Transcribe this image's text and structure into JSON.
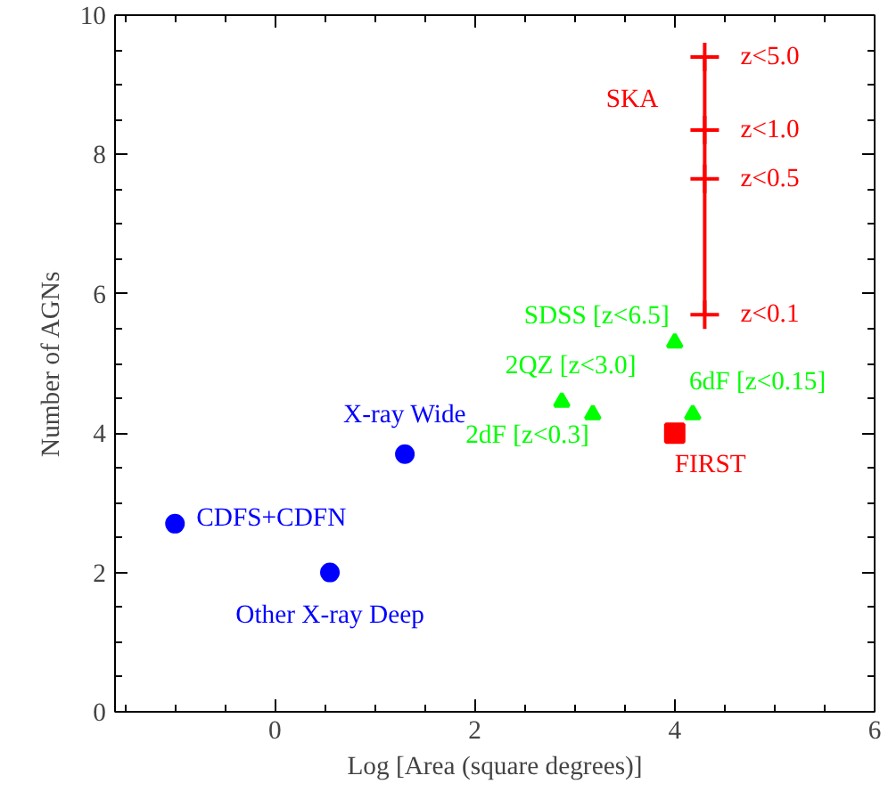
{
  "chart_data": {
    "type": "scatter",
    "xlabel": "Log [Area (square degrees)]",
    "ylabel": "Number of AGNs",
    "xlim": [
      -1.6,
      6
    ],
    "ylim": [
      0,
      10
    ],
    "xticks": [
      0,
      2,
      4,
      6
    ],
    "yticks": [
      0,
      2,
      4,
      6,
      8,
      10
    ],
    "grid": false,
    "series": [
      {
        "name": "CDFS+CDFN",
        "color": "#0000ff",
        "marker": "circle",
        "x": [
          -1.0
        ],
        "values": [
          2.7
        ]
      },
      {
        "name": "Other X-ray Deep",
        "color": "#0000ff",
        "marker": "circle",
        "x": [
          0.55
        ],
        "values": [
          2.0
        ]
      },
      {
        "name": "X-ray Wide",
        "color": "#0000ff",
        "marker": "circle",
        "x": [
          1.3
        ],
        "values": [
          3.7
        ]
      },
      {
        "name": "SDSS [z<6.5]",
        "color": "#00ff00",
        "marker": "triangle",
        "x": [
          4.0
        ],
        "values": [
          5.3
        ]
      },
      {
        "name": "2QZ [z<3.0]",
        "color": "#00ff00",
        "marker": "triangle",
        "x": [
          2.87
        ],
        "values": [
          4.45
        ]
      },
      {
        "name": "2dF [z<0.3]",
        "color": "#00ff00",
        "marker": "triangle",
        "x": [
          3.18
        ],
        "values": [
          4.27
        ]
      },
      {
        "name": "6dF [z<0.15]",
        "color": "#00ff00",
        "marker": "triangle",
        "x": [
          4.18
        ],
        "values": [
          4.27
        ]
      },
      {
        "name": "FIRST",
        "color": "#ff0000",
        "marker": "square",
        "x": [
          4.0
        ],
        "values": [
          4.0
        ]
      },
      {
        "name": "SKA",
        "type": "line",
        "color": "#ff0000",
        "marker": "cross",
        "x": [
          4.3,
          4.3,
          4.3,
          4.3
        ],
        "values": [
          5.7,
          7.65,
          8.35,
          9.4
        ],
        "value_labels": [
          "z<0.1",
          "z<0.5",
          "z<1.0",
          "z<5.0"
        ]
      }
    ]
  }
}
